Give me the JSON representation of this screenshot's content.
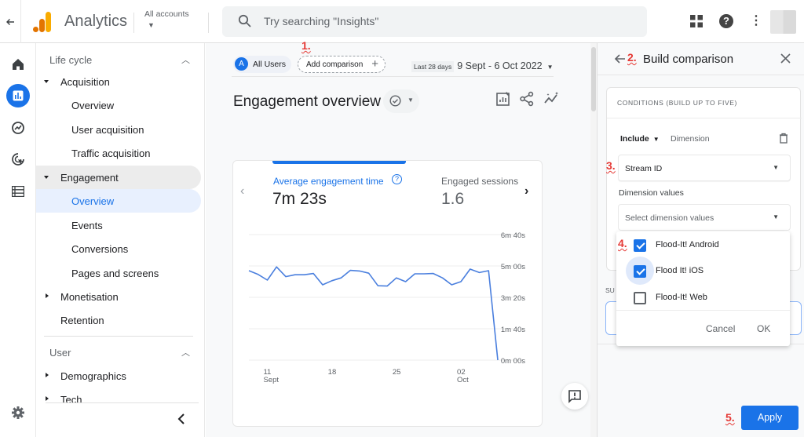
{
  "topbar": {
    "back_icon": "arrow-left-icon",
    "app_title": "Analytics",
    "account_selector_label": "All accounts",
    "search_placeholder": "Try searching \"Insights\"",
    "icons": [
      "apps-grid-icon",
      "help-icon",
      "more-vert-icon",
      "avatar"
    ]
  },
  "rail": {
    "items": [
      {
        "name": "home",
        "icon": "home-icon"
      },
      {
        "name": "reports",
        "icon": "bar-chart-icon",
        "active": true
      },
      {
        "name": "explore",
        "icon": "explore-icon"
      },
      {
        "name": "advertising",
        "icon": "target-cursor-icon"
      },
      {
        "name": "configure",
        "icon": "list-icon"
      }
    ],
    "settings_icon": "gear-icon"
  },
  "sidebar": {
    "sections": [
      {
        "label": "Life cycle",
        "expanded": true
      },
      {
        "label": "User",
        "expanded": true
      }
    ],
    "items": [
      {
        "label": "Acquisition",
        "level": 1,
        "expanded": true
      },
      {
        "label": "Overview",
        "level": 2
      },
      {
        "label": "User acquisition",
        "level": 2
      },
      {
        "label": "Traffic acquisition",
        "level": 2
      },
      {
        "label": "Engagement",
        "level": 1,
        "expanded": true,
        "highlighted": true
      },
      {
        "label": "Overview",
        "level": 2,
        "selected": true
      },
      {
        "label": "Events",
        "level": 2
      },
      {
        "label": "Conversions",
        "level": 2
      },
      {
        "label": "Pages and screens",
        "level": 2
      },
      {
        "label": "Monetisation",
        "level": 1,
        "expanded": false
      },
      {
        "label": "Retention",
        "level": 1
      },
      {
        "label": "Demographics",
        "level": 1,
        "expanded": false
      },
      {
        "label": "Tech",
        "level": 1,
        "expanded": false
      }
    ],
    "collapse_icon": "chevron-left-icon"
  },
  "main": {
    "segment_chip": {
      "avatar_letter": "A",
      "label": "All Users"
    },
    "add_comparison_label": "Add comparison",
    "date_preset": "Last 28 days",
    "date_range": "9 Sept - 6 Oct 2022",
    "page_title": "Engagement overview",
    "card": {
      "metric1": {
        "label": "Average engagement time",
        "value": "7m 23s"
      },
      "metric2": {
        "label": "Engaged sessions",
        "value": "1.6"
      }
    }
  },
  "chart_data": {
    "type": "line",
    "title": "Average engagement time",
    "xlabel": "",
    "ylabel": "",
    "x_tick_labels": [
      {
        "day": "11",
        "month": "Sept"
      },
      {
        "day": "18",
        "month": ""
      },
      {
        "day": "25",
        "month": ""
      },
      {
        "day": "02",
        "month": "Oct"
      }
    ],
    "y_tick_labels": [
      "6m 40s",
      "5m 00s",
      "3m 20s",
      "1m 40s",
      "0m 00s"
    ],
    "ylim_seconds": [
      0,
      400
    ],
    "grid": true,
    "legend": "none",
    "series": [
      {
        "name": "Average engagement time (seconds)",
        "color": "#4a7fde",
        "x": [
          "Sep 9",
          "Sep 10",
          "Sep 11",
          "Sep 12",
          "Sep 13",
          "Sep 14",
          "Sep 15",
          "Sep 16",
          "Sep 17",
          "Sep 18",
          "Sep 19",
          "Sep 20",
          "Sep 21",
          "Sep 22",
          "Sep 23",
          "Sep 24",
          "Sep 25",
          "Sep 26",
          "Sep 27",
          "Sep 28",
          "Sep 29",
          "Sep 30",
          "Oct 1",
          "Oct 2",
          "Oct 3",
          "Oct 4",
          "Oct 5",
          "Oct 6"
        ],
        "values": [
          285,
          273,
          255,
          297,
          266,
          272,
          272,
          276,
          240,
          253,
          262,
          286,
          284,
          277,
          237,
          236,
          262,
          250,
          275,
          275,
          276,
          262,
          240,
          250,
          290,
          279,
          285,
          0
        ]
      }
    ]
  },
  "panel": {
    "title": "Build comparison",
    "conditions_header": "CONDITIONS (BUILD UP TO FIVE)",
    "include_label": "Include",
    "dimension_label": "Dimension",
    "dimension_value": "Stream ID",
    "dimension_values_label": "Dimension values",
    "dimension_values_placeholder": "Select dimension values",
    "summary_label": "SU",
    "dropdown": {
      "options": [
        {
          "label": "Flood-It! Android",
          "checked": true
        },
        {
          "label": "Flood It! iOS",
          "checked": true
        },
        {
          "label": "Flood-It! Web",
          "checked": false
        }
      ],
      "cancel_label": "Cancel",
      "ok_label": "OK"
    },
    "apply_label": "Apply"
  },
  "annotations": {
    "step1": "1.",
    "step2": "2.",
    "step3": "3.",
    "step4": "4.",
    "step5": "5.",
    "color": "#e53935"
  }
}
